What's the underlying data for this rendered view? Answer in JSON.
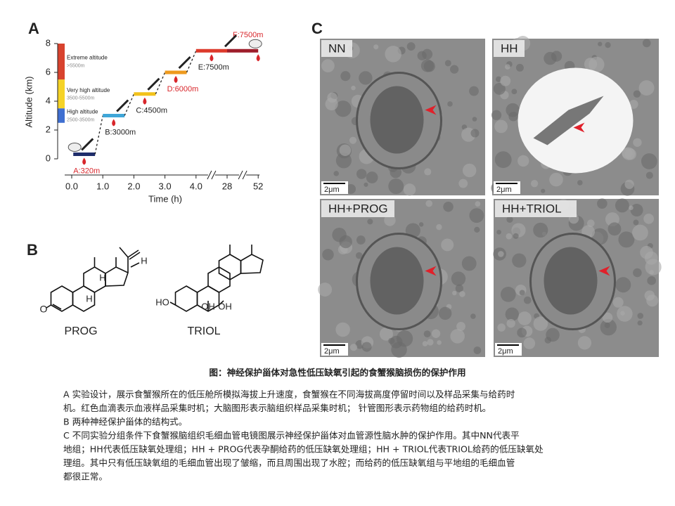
{
  "panel_labels": [
    "A",
    "B",
    "C"
  ],
  "chart_data": {
    "type": "step",
    "x_label": "Time (h)",
    "y_label": "Altitude (km)",
    "xlim": [
      0,
      52
    ],
    "ylim": [
      0,
      8
    ],
    "xticks": [
      {
        "value": 0,
        "label": "0.0"
      },
      {
        "value": 1,
        "label": "1.0"
      },
      {
        "value": 2,
        "label": "2.0"
      },
      {
        "value": 3,
        "label": "3.0"
      },
      {
        "value": 4,
        "label": "4.0"
      },
      28,
      52
    ],
    "yticks": [
      0,
      2,
      4,
      6,
      8
    ],
    "axis_break": true,
    "zones": [
      {
        "name": "Extreme altitude",
        "range_label": ">5500m",
        "from": 5.5,
        "to": 8,
        "color": "#d8432e"
      },
      {
        "name": "Very high altitude",
        "range_label": "3500-5500m",
        "from": 3.5,
        "to": 5.5,
        "color": "#f5d327"
      },
      {
        "name": "High altitude",
        "range_label": "2500-3500m",
        "from": 2.5,
        "to": 3.5,
        "color": "#3f6fd1"
      }
    ],
    "stages": [
      {
        "label": "A:320m",
        "start": 0.05,
        "end": 0.75,
        "altitude": 0.32,
        "color": "#1f2d6b",
        "label_color": "#d8262b"
      },
      {
        "label": "B:3000m",
        "start": 1,
        "end": 1.7,
        "altitude": 3,
        "color": "#3fa6d8",
        "label_color": "#222222"
      },
      {
        "label": "C:4500m",
        "start": 2,
        "end": 2.7,
        "altitude": 4.5,
        "color": "#f2c21b",
        "label_color": "#222222"
      },
      {
        "label": "D:6000m",
        "start": 3,
        "end": 3.7,
        "altitude": 6,
        "color": "#ee9a1e",
        "label_color": "#d8262b"
      },
      {
        "label": "E:7500m",
        "start": 4,
        "end": 28,
        "altitude": 7.5,
        "color": "#dd3a2c",
        "label_color": "#222222"
      },
      {
        "label": "F:7500m",
        "start": 28,
        "end": 52,
        "altitude": 7.5,
        "color": "#9e1e2b",
        "label_color": "#d8262b"
      }
    ]
  },
  "structures": [
    {
      "name": "PROG",
      "atoms": [
        "O",
        "H",
        "H",
        "H"
      ]
    },
    {
      "name": "TRIOL",
      "atoms": [
        "HO",
        "OH",
        "OH"
      ]
    }
  ],
  "micrographs": [
    {
      "label": "NN",
      "scale": "2μm"
    },
    {
      "label": "HH",
      "scale": "2μm"
    },
    {
      "label": "HH+PROG",
      "scale": "2μm"
    },
    {
      "label": "HH+TRIOL",
      "scale": "2μm"
    }
  ],
  "caption": {
    "title": "图：神经保护甾体对急性低压缺氧引起的食蟹猴脑损伤的保护作用",
    "lines": [
      "A 实验设计，展示食蟹猴所在的低压舱所模拟海拔上升速度，食蟹猴在不同海拔高度停留时间以及样品采集与给药时",
      "机。红色血滴表示血液样品采集时机；大脑图形表示脑组织样品采集时机； 针管图形表示药物组的给药时机。",
      "B 两种神经保护甾体的结构式。",
      "C 不同实验分组条件下食蟹猴脑组织毛细血管电镜图展示神经保护甾体对血管源性脑水肿的保护作用。其中NN代表平",
      "地组；HH代表低压缺氧处理组；HH + PROG代表孕酮给药的低压缺氧处理组；HH + TRIOL代表TRIOL给药的低压缺氧处",
      "理组。其中只有低压缺氧组的毛细血管出现了皱缩，而且周围出现了水腔；而给药的低压缺氧组与平地组的毛细血管",
      "都很正常。"
    ]
  }
}
